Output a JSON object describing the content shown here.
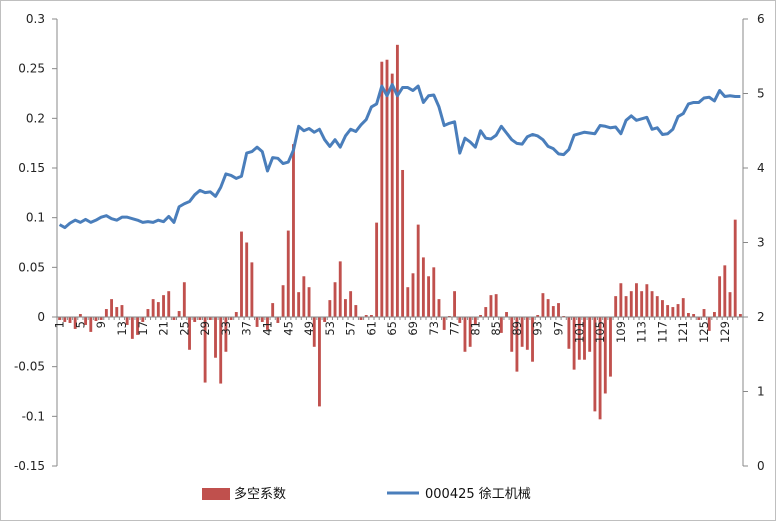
{
  "chart_data": {
    "type": "bar+line",
    "title": "",
    "xlabel": "",
    "ylabel": "",
    "categories_start": 1,
    "category_count": 132,
    "x_tick_labels": [
      "1",
      "5",
      "9",
      "13",
      "17",
      "21",
      "25",
      "29",
      "33",
      "37",
      "41",
      "45",
      "49",
      "53",
      "57",
      "61",
      "65",
      "69",
      "73",
      "77",
      "81",
      "85",
      "89",
      "93",
      "97",
      "101",
      "105",
      "109",
      "113",
      "117",
      "121",
      "125",
      "129"
    ],
    "y_left": {
      "min": -0.15,
      "max": 0.3,
      "step": 0.05,
      "tick_labels": [
        "-0.15",
        "-0.1",
        "-0.05",
        "0",
        "0.05",
        "0.1",
        "0.15",
        "0.2",
        "0.25",
        "0.3"
      ]
    },
    "y_right": {
      "min": 0,
      "max": 6,
      "step": 1,
      "tick_labels": [
        "0",
        "1",
        "2",
        "3",
        "4",
        "5",
        "6"
      ]
    },
    "series": [
      {
        "name": "多空系数",
        "type": "bar",
        "axis": "left",
        "color": "#c0504d",
        "values": [
          -0.003,
          -0.005,
          -0.006,
          -0.012,
          0.003,
          -0.008,
          -0.015,
          -0.004,
          -0.003,
          0.008,
          0.018,
          0.01,
          0.012,
          -0.008,
          -0.022,
          -0.018,
          -0.005,
          0.008,
          0.018,
          0.015,
          0.022,
          0.026,
          -0.003,
          0.006,
          0.035,
          -0.033,
          -0.005,
          -0.003,
          -0.066,
          -0.003,
          -0.041,
          -0.067,
          -0.035,
          -0.003,
          0.005,
          0.086,
          0.075,
          0.055,
          -0.01,
          -0.005,
          -0.013,
          0.014,
          -0.006,
          0.032,
          0.087,
          0.174,
          0.025,
          0.041,
          0.03,
          -0.03,
          -0.09,
          -0.005,
          0.017,
          0.035,
          0.056,
          0.018,
          0.026,
          0.012,
          -0.003,
          0.002,
          0.002,
          0.095,
          0.257,
          0.259,
          0.245,
          0.274,
          0.148,
          0.03,
          0.044,
          0.093,
          0.06,
          0.041,
          0.05,
          0.018,
          -0.013,
          0.001,
          0.026,
          -0.006,
          -0.035,
          -0.03,
          -0.008,
          0.002,
          0.01,
          0.022,
          0.023,
          -0.016,
          0.005,
          -0.035,
          -0.055,
          -0.03,
          -0.033,
          -0.045,
          0.002,
          0.024,
          0.018,
          0.011,
          0.014,
          0.001,
          -0.032,
          -0.053,
          -0.043,
          -0.043,
          -0.035,
          -0.095,
          -0.103,
          -0.077,
          -0.06,
          0.021,
          0.034,
          0.021,
          0.026,
          0.034,
          0.026,
          0.033,
          0.026,
          0.021,
          0.017,
          0.012,
          0.01,
          0.013,
          0.019,
          0.004,
          0.003,
          -0.003,
          0.008,
          -0.014,
          0.005,
          0.041,
          0.052,
          0.025,
          0.098,
          0.003
        ]
      },
      {
        "name": "000425 徐工机械",
        "type": "line",
        "axis": "right",
        "color": "#4a7ebb",
        "values": [
          3.24,
          3.2,
          3.26,
          3.3,
          3.27,
          3.31,
          3.27,
          3.3,
          3.34,
          3.36,
          3.32,
          3.3,
          3.34,
          3.34,
          3.32,
          3.3,
          3.27,
          3.28,
          3.27,
          3.3,
          3.28,
          3.35,
          3.27,
          3.48,
          3.52,
          3.55,
          3.64,
          3.7,
          3.67,
          3.68,
          3.62,
          3.74,
          3.92,
          3.9,
          3.86,
          3.89,
          4.2,
          4.22,
          4.28,
          4.22,
          3.96,
          4.14,
          4.13,
          4.06,
          4.08,
          4.24,
          4.56,
          4.5,
          4.53,
          4.48,
          4.52,
          4.38,
          4.29,
          4.38,
          4.28,
          4.43,
          4.52,
          4.49,
          4.58,
          4.65,
          4.82,
          4.86,
          5.1,
          4.97,
          5.12,
          4.97,
          5.08,
          5.08,
          5.04,
          5.1,
          4.88,
          4.97,
          4.98,
          4.82,
          4.57,
          4.6,
          4.62,
          4.2,
          4.4,
          4.35,
          4.28,
          4.5,
          4.4,
          4.39,
          4.44,
          4.56,
          4.47,
          4.38,
          4.33,
          4.32,
          4.42,
          4.45,
          4.43,
          4.38,
          4.29,
          4.26,
          4.19,
          4.18,
          4.25,
          4.44,
          4.46,
          4.48,
          4.47,
          4.46,
          4.57,
          4.56,
          4.54,
          4.55,
          4.46,
          4.64,
          4.7,
          4.64,
          4.66,
          4.68,
          4.52,
          4.54,
          4.45,
          4.46,
          4.52,
          4.69,
          4.73,
          4.86,
          4.88,
          4.88,
          4.94,
          4.95,
          4.9,
          5.04,
          4.96,
          4.97,
          4.96,
          4.96
        ]
      }
    ],
    "legend": {
      "position": "bottom",
      "entries": [
        "多空系数",
        "000425 徐工机械"
      ]
    },
    "grid": false
  }
}
